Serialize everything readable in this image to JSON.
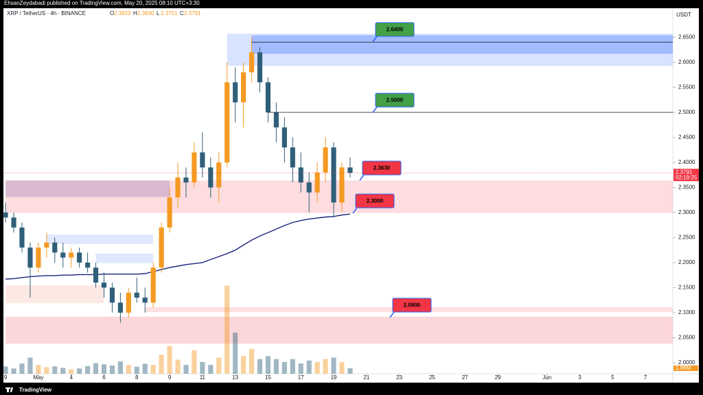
{
  "header": {
    "publisher_line": "EhsanZeydabadi published on TradingView.com, May 20, 2025 08:10 UTC+3:30",
    "footer_brand": "TradingView"
  },
  "chart_data": {
    "type": "candlestick",
    "symbol": "XRP / TetherUS · 4h · BINANCE",
    "ohlc_legend": [
      {
        "key": "O",
        "value": "2.3823"
      },
      {
        "key": "H",
        "value": "2.3830"
      },
      {
        "key": "L",
        "value": "2.3751"
      },
      {
        "key": "C",
        "value": "2.3791"
      }
    ],
    "currency": "USDT",
    "x": [
      0,
      0.5,
      1,
      1.5,
      2,
      2.5,
      3,
      3.5,
      4,
      4.5,
      5,
      5.5,
      6,
      6.5,
      7,
      7.5,
      8,
      8.5,
      9,
      9.5,
      10,
      10.5,
      11,
      11.5,
      12,
      12.5,
      13,
      13.5,
      14,
      14.5,
      15,
      15.5,
      16,
      16.5,
      17,
      17.5,
      18,
      18.5,
      19,
      19.5,
      20,
      20.5,
      21
    ],
    "open": [
      2.3,
      2.29,
      2.27,
      2.23,
      2.19,
      2.23,
      2.24,
      2.22,
      2.21,
      2.22,
      2.2,
      2.19,
      2.16,
      2.15,
      2.12,
      2.1,
      2.14,
      2.13,
      2.12,
      2.19,
      2.27,
      2.33,
      2.37,
      2.36,
      2.42,
      2.39,
      2.35,
      2.4,
      2.56,
      2.52,
      2.58,
      2.62,
      2.56,
      2.5,
      2.47,
      2.43,
      2.39,
      2.36,
      2.34,
      2.38,
      2.43,
      2.32,
      2.39
    ],
    "high": [
      2.32,
      2.3,
      2.28,
      2.24,
      2.24,
      2.26,
      2.25,
      2.24,
      2.23,
      2.23,
      2.22,
      2.2,
      2.18,
      2.16,
      2.14,
      2.15,
      2.17,
      2.15,
      2.2,
      2.28,
      2.35,
      2.4,
      2.39,
      2.44,
      2.46,
      2.41,
      2.42,
      2.6,
      2.59,
      2.6,
      2.65,
      2.63,
      2.57,
      2.52,
      2.49,
      2.45,
      2.42,
      2.38,
      2.4,
      2.45,
      2.44,
      2.4,
      2.41
    ],
    "low": [
      2.28,
      2.26,
      2.22,
      2.13,
      2.18,
      2.21,
      2.2,
      2.19,
      2.19,
      2.19,
      2.18,
      2.15,
      2.13,
      2.1,
      2.08,
      2.09,
      2.12,
      2.1,
      2.11,
      2.18,
      2.26,
      2.31,
      2.33,
      2.35,
      2.37,
      2.33,
      2.32,
      2.39,
      2.48,
      2.47,
      2.56,
      2.54,
      2.48,
      2.44,
      2.4,
      2.36,
      2.34,
      2.3,
      2.32,
      2.36,
      2.29,
      2.3,
      2.37
    ],
    "close": [
      2.29,
      2.27,
      2.23,
      2.19,
      2.23,
      2.24,
      2.22,
      2.21,
      2.22,
      2.2,
      2.19,
      2.16,
      2.15,
      2.12,
      2.1,
      2.14,
      2.13,
      2.12,
      2.19,
      2.27,
      2.33,
      2.37,
      2.36,
      2.42,
      2.39,
      2.35,
      2.4,
      2.56,
      2.52,
      2.58,
      2.62,
      2.56,
      2.5,
      2.47,
      2.43,
      2.39,
      2.36,
      2.34,
      2.38,
      2.43,
      2.32,
      2.39,
      2.3791
    ],
    "up_color": "#f59a23",
    "down_color": "#2f5f7a",
    "moving_average": {
      "color": "#1a237e",
      "values": [
        2.167,
        2.168,
        2.17,
        2.172,
        2.173,
        2.174,
        2.174,
        2.175,
        2.175,
        2.176,
        2.176,
        2.176,
        2.177,
        2.177,
        2.177,
        2.177,
        2.177,
        2.178,
        2.182,
        2.186,
        2.19,
        2.193,
        2.196,
        2.198,
        2.2,
        2.206,
        2.212,
        2.218,
        2.225,
        2.235,
        2.245,
        2.253,
        2.26,
        2.267,
        2.274,
        2.28,
        2.284,
        2.287,
        2.289,
        2.291,
        2.292,
        2.295,
        2.297
      ]
    },
    "volume": {
      "values": [
        2500000,
        1800000,
        3500000,
        5500000,
        3000000,
        2200000,
        2500000,
        2000000,
        1500000,
        1800000,
        2600000,
        3600000,
        3200000,
        2800000,
        4200000,
        3000000,
        2400000,
        3400000,
        3000000,
        6500000,
        9500000,
        4800000,
        3000000,
        8000000,
        4000000,
        3000000,
        5500000,
        30000000,
        14000000,
        6000000,
        8500000,
        5000000,
        6000000,
        5000000,
        4000000,
        5000000,
        3500000,
        4500000,
        4000000,
        5000000,
        5500000,
        4000000,
        1880000
      ],
      "vlim": [
        0,
        32000000
      ],
      "last_label": {
        "value": 1880000,
        "label": "1.88M"
      }
    },
    "xlim": [
      -0.13,
      40.67
    ],
    "ylim": [
      1.978,
      2.708
    ],
    "xticks": [
      {
        "value": 0,
        "label": "9"
      },
      {
        "value": 2,
        "label": "May"
      },
      4,
      6,
      8,
      {
        "value": 10,
        "label": "9"
      },
      {
        "value": 12,
        "label": "11"
      },
      {
        "value": 14,
        "label": "13"
      },
      {
        "value": 16,
        "label": "15"
      },
      {
        "value": 18,
        "label": "17"
      },
      {
        "value": 20,
        "label": "19"
      },
      {
        "value": 22,
        "label": "21"
      },
      {
        "value": 24,
        "label": "23"
      },
      {
        "value": 26,
        "label": "25"
      },
      {
        "value": 28,
        "label": "27"
      },
      {
        "value": 30,
        "label": "29"
      },
      {
        "value": 33,
        "label": "Jun"
      },
      {
        "value": 35,
        "label": "3"
      },
      {
        "value": 37,
        "label": "5"
      },
      {
        "value": 39,
        "label": "7"
      }
    ],
    "yticks": [
      {
        "value": 2.0,
        "label": "2.0000"
      },
      {
        "value": 2.05,
        "label": "2.0500"
      },
      {
        "value": 2.1,
        "label": "2.1000"
      },
      {
        "value": 2.15,
        "label": "2.1500"
      },
      {
        "value": 2.2,
        "label": "2.2000"
      },
      {
        "value": 2.25,
        "label": "2.2500"
      },
      {
        "value": 2.3,
        "label": "2.3000"
      },
      {
        "value": 2.35,
        "label": "2.3500"
      },
      {
        "value": 2.4,
        "label": "2.4000"
      },
      {
        "value": 2.45,
        "label": "2.4500"
      },
      {
        "value": 2.5,
        "label": "2.5000"
      },
      {
        "value": 2.55,
        "label": "2.5500"
      },
      {
        "value": 2.6,
        "label": "2.6000"
      },
      {
        "value": 2.65,
        "label": "2.6500"
      }
    ],
    "last_price": {
      "value": 2.3791,
      "label": "2.3791",
      "countdown": "02:19:25",
      "color": "#f23645"
    },
    "levels": [
      {
        "value": 2.64,
        "label": "2.6400",
        "color": "#43a047",
        "from": 15
      },
      {
        "value": 2.5,
        "label": "2.5000",
        "color": "#43a047",
        "from": 16
      },
      {
        "value": 2.363,
        "label": "2.3630",
        "color": "#f23645"
      },
      {
        "value": 2.3,
        "label": "2.3000",
        "color": "#f23645"
      },
      {
        "value": 2.09,
        "label": "2.0900",
        "color": "#f23645"
      }
    ],
    "zones": [
      {
        "from": 13.5,
        "y0": 2.593,
        "y1": 2.657,
        "color": "rgba(41,98,255,0.18)",
        "extend": true
      },
      {
        "from": 15,
        "y0": 2.617,
        "y1": 2.654,
        "color": "rgba(41,98,255,0.3)",
        "extend": true
      },
      {
        "from": 0,
        "y0": 2.299,
        "y1": 2.364,
        "color": "rgba(242,54,69,0.17)",
        "extend": true
      },
      {
        "from": 0,
        "to": 10,
        "y0": 2.331,
        "y1": 2.364,
        "color": "rgba(110,80,160,0.25)"
      },
      {
        "from": 0,
        "to": 6,
        "y0": 2.119,
        "y1": 2.155,
        "color": "rgba(242,110,69,0.15)"
      },
      {
        "from": 2.5,
        "to": 9,
        "y0": 2.237,
        "y1": 2.256,
        "color": "rgba(41,98,255,0.15)"
      },
      {
        "from": 5.5,
        "to": 9,
        "y0": 2.199,
        "y1": 2.218,
        "color": "rgba(41,98,255,0.15)"
      },
      {
        "from": 8.5,
        "y0": 2.101,
        "y1": 2.111,
        "color": "rgba(242,54,69,0.15)",
        "extend": true
      },
      {
        "from": 0,
        "y0": 2.038,
        "y1": 2.092,
        "color": "rgba(242,54,69,0.2)",
        "extend": true
      }
    ]
  }
}
